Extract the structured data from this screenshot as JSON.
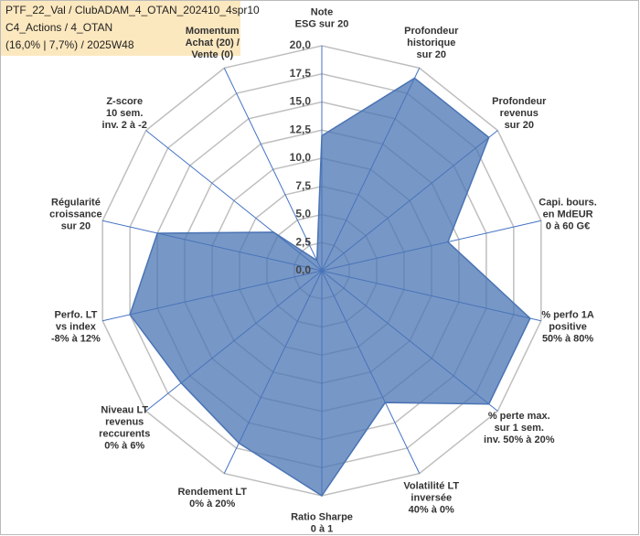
{
  "chart_data": {
    "type": "radar",
    "title": [
      "PTF_22_Val / ClubADAM_4_OTAN_202410_4spr10",
      "C4_Actions / 4_OTAN",
      "(16,0% | 7,7%) / 2025W48"
    ],
    "categories": [
      [
        "Note",
        "ESG sur 20"
      ],
      [
        "Profondeur",
        "historique",
        "sur 20"
      ],
      [
        "Profondeur",
        "revenus",
        "sur 20"
      ],
      [
        "Capi. bours.",
        "en MdEUR",
        "0 à 60 G€"
      ],
      [
        "% perfo 1A",
        "positive",
        "50% à 80%"
      ],
      [
        "% perte max.",
        "sur 1 sem.",
        "inv. 50% à 20%"
      ],
      [
        "Volatilité LT",
        "inversée",
        "40% à 0%"
      ],
      [
        "Ratio Sharpe",
        "0 à 1"
      ],
      [
        "Rendement LT",
        "0% à 20%"
      ],
      [
        "Niveau LT",
        "revenus",
        "reccurents",
        "0% à 6%"
      ],
      [
        "Perfo. LT",
        "vs index",
        "-8% à 12%"
      ],
      [
        "Régularité",
        "croissance",
        "sur 20"
      ],
      [
        "Z-score",
        "10 sem.",
        "inv. 2 à -2"
      ],
      [
        "Momentum",
        "Achat (20) /",
        "Vente (0)"
      ]
    ],
    "values": [
      12,
      19,
      19,
      11.5,
      19,
      19,
      13,
      20,
      17,
      16,
      17.5,
      15,
      5.5,
      1
    ],
    "color": "#4a74b4",
    "ylim": [
      0,
      20
    ],
    "yticks": [
      {
        "value": 0,
        "label": "0,0"
      },
      {
        "value": 2.5,
        "label": "2,5"
      },
      {
        "value": 5,
        "label": "5,0"
      },
      {
        "value": 7.5,
        "label": "7,5"
      },
      {
        "value": 10,
        "label": "10,0"
      },
      {
        "value": 12.5,
        "label": "12,5"
      },
      {
        "value": 15,
        "label": "15,0"
      },
      {
        "value": 17.5,
        "label": "17,5"
      },
      {
        "value": 20,
        "label": "20,0"
      }
    ],
    "grid": true
  }
}
